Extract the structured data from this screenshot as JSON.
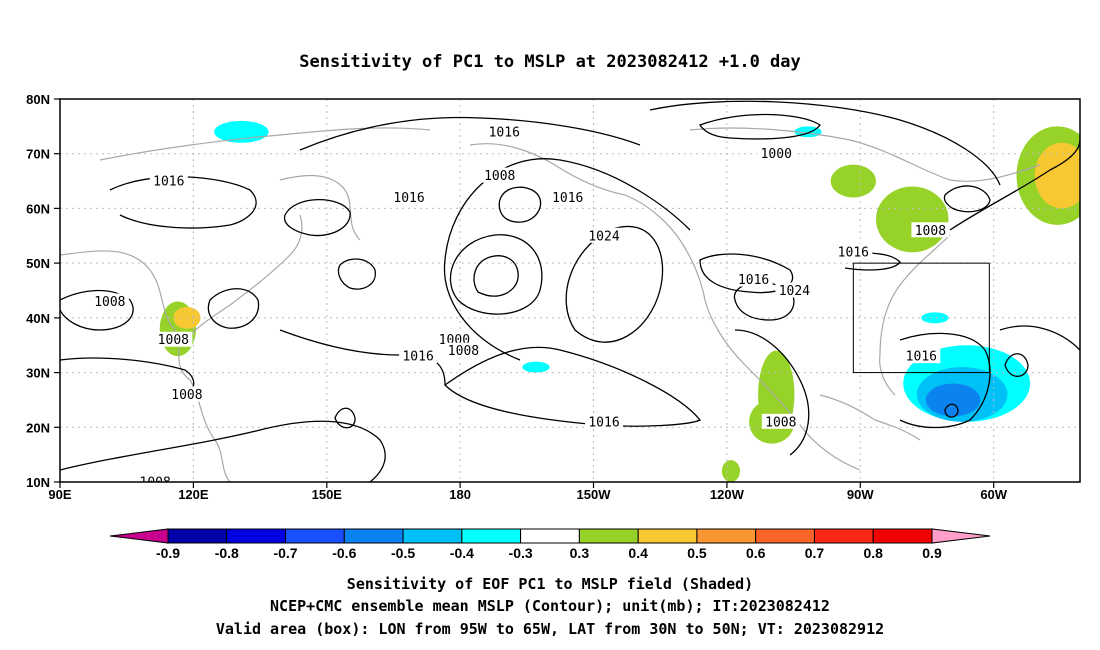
{
  "chart_data": {
    "type": "heatmap",
    "title": "Sensitivity of PC1 to MSLP at 2023082412 +1.0 day",
    "x_ticks": [
      "90E",
      "120E",
      "150E",
      "180",
      "150W",
      "120W",
      "90W",
      "60W"
    ],
    "y_ticks": [
      "10N",
      "20N",
      "30N",
      "40N",
      "50N",
      "60N",
      "70N",
      "80N"
    ],
    "xlim": [
      "90E",
      "45W"
    ],
    "ylim": [
      "10N",
      "80N"
    ],
    "grid": "dotted",
    "colorbar": {
      "labels": [
        "-0.9",
        "-0.8",
        "-0.7",
        "-0.6",
        "-0.5",
        "-0.4",
        "-0.3",
        "0.3",
        "0.4",
        "0.5",
        "0.6",
        "0.7",
        "0.8",
        "0.9"
      ],
      "colors": [
        "#c8008c",
        "#0000a8",
        "#0000e0",
        "#1850ff",
        "#0a82f0",
        "#00c0f8",
        "#00ffff",
        "#ffffff",
        "#96d228",
        "#f8c832",
        "#f89632",
        "#f86428",
        "#f82814",
        "#f00000",
        "#ff9ec8"
      ]
    },
    "contour_labels": [
      {
        "text": "1016",
        "lon": -172,
        "lat": 74
      },
      {
        "text": "1000",
        "lon": -112,
        "lat": 70
      },
      {
        "text": "1008",
        "lon": -173,
        "lat": 66
      },
      {
        "text": "1016",
        "lon": 114,
        "lat": 65
      },
      {
        "text": "1016",
        "lon": 167,
        "lat": 62
      },
      {
        "text": "1016",
        "lon": -158,
        "lat": 62
      },
      {
        "text": "1024",
        "lon": -150,
        "lat": 55
      },
      {
        "text": "1008",
        "lon": -78,
        "lat": 56
      },
      {
        "text": "1016",
        "lon": -95,
        "lat": 52
      },
      {
        "text": "1016",
        "lon": -117,
        "lat": 47
      },
      {
        "text": "1024",
        "lon": -108,
        "lat": 45
      },
      {
        "text": "1008",
        "lon": 101,
        "lat": 43
      },
      {
        "text": "1000",
        "lon": -183,
        "lat": 36
      },
      {
        "text": "1008",
        "lon": -181,
        "lat": 34
      },
      {
        "text": "1008",
        "lon": 115,
        "lat": 36
      },
      {
        "text": "1016",
        "lon": 169,
        "lat": 33
      },
      {
        "text": "1008",
        "lon": 118,
        "lat": 26
      },
      {
        "text": "1016",
        "lon": -80,
        "lat": 33
      },
      {
        "text": "1016",
        "lon": -150,
        "lat": 21
      },
      {
        "text": "1008",
        "lon": -111,
        "lat": 21
      },
      {
        "text": "1008",
        "lon": 111,
        "lat": 10
      }
    ],
    "shaded_regions": [
      {
        "lon": -95,
        "lat": 65,
        "rx": 5,
        "ry": 3,
        "value": 0.35
      },
      {
        "lon": -50,
        "lat": 66,
        "rx": 9,
        "ry": 9,
        "value": 0.35
      },
      {
        "lon": -49,
        "lat": 66,
        "rx": 6,
        "ry": 6,
        "value": 0.45
      },
      {
        "lon": -82,
        "lat": 58,
        "rx": 8,
        "ry": 6,
        "value": 0.35
      },
      {
        "lon": 116,
        "lat": 38,
        "rx": 4,
        "ry": 5,
        "value": 0.35
      },
      {
        "lon": 118,
        "lat": 40,
        "rx": 3,
        "ry": 2,
        "value": 0.45
      },
      {
        "lon": -112,
        "lat": 26,
        "rx": 4,
        "ry": 8,
        "value": 0.35
      },
      {
        "lon": -113,
        "lat": 21,
        "rx": 5,
        "ry": 4,
        "value": 0.35
      },
      {
        "lon": -122,
        "lat": 12,
        "rx": 2,
        "ry": 2,
        "value": 0.35
      },
      {
        "lon": -70,
        "lat": 28,
        "rx": 14,
        "ry": 7,
        "value": -0.35
      },
      {
        "lon": -71,
        "lat": 26,
        "rx": 10,
        "ry": 5,
        "value": -0.45
      },
      {
        "lon": -73,
        "lat": 25,
        "rx": 6,
        "ry": 3,
        "value": -0.55
      },
      {
        "lon": 130,
        "lat": 74,
        "rx": 6,
        "ry": 2,
        "value": -0.35
      },
      {
        "lon": -105,
        "lat": 74,
        "rx": 3,
        "ry": 1,
        "value": -0.35
      },
      {
        "lon": -165,
        "lat": 31,
        "rx": 3,
        "ry": 1,
        "value": -0.35
      },
      {
        "lon": -77,
        "lat": 40,
        "rx": 3,
        "ry": 1,
        "value": -0.35
      }
    ],
    "valid_area_box": {
      "lon_min": -95,
      "lon_max": -65,
      "lat_min": 30,
      "lat_max": 50
    }
  },
  "captions": {
    "line1": "Sensitivity of EOF PC1 to MSLP field (Shaded)",
    "line2": "NCEP+CMC ensemble mean MSLP (Contour); unit(mb); IT:2023082412",
    "line3": "Valid area (box): LON from 95W to 65W, LAT from 30N to 50N; VT: 2023082912"
  }
}
